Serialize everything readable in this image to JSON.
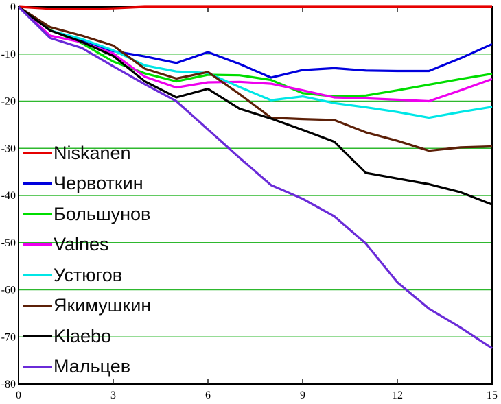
{
  "figure": {
    "background": "#ffffff"
  },
  "axes": {
    "box_color": "#000000",
    "grid_color": "#2eb82e",
    "tick_color": "#1a1a1a",
    "tick_label_color": "#000000",
    "x_tick_labels": [
      "0",
      "3",
      "6",
      "9",
      "12",
      "15"
    ],
    "x_tick_values": [
      0,
      3,
      6,
      9,
      12,
      15
    ],
    "x_inner_tick_values": [
      3,
      6,
      9,
      12
    ],
    "y_tick_labels": [
      "0",
      "-10",
      "-20",
      "-30",
      "-40",
      "-50",
      "-60",
      "-70",
      "-80"
    ],
    "y_tick_values": [
      0,
      -10,
      -20,
      -30,
      -40,
      -50,
      -60,
      -70,
      -80
    ],
    "y_grid_values": [
      -10,
      -20,
      -30,
      -40,
      -50,
      -60,
      -70
    ]
  },
  "chart_data": {
    "type": "line",
    "title": "",
    "xlabel": "",
    "ylabel": "",
    "xlim": [
      0,
      15
    ],
    "ylim": [
      -80,
      0
    ],
    "grid": "horizontal-green",
    "legend_position": "inside-left",
    "x": [
      0,
      1,
      2,
      3,
      4,
      5,
      6,
      7,
      8,
      9,
      10,
      11,
      12,
      13,
      14,
      15
    ],
    "series": [
      {
        "name": "Niskanen",
        "color": "#e60000",
        "values": [
          0,
          -0.4,
          -0.5,
          -0.3,
          0,
          0,
          0,
          0,
          0,
          0,
          0,
          0,
          0,
          0,
          0,
          0
        ]
      },
      {
        "name": "Червоткин",
        "color": "#0000dd",
        "values": [
          0,
          -5.0,
          -7.0,
          -9.4,
          -10.5,
          -11.9,
          -9.6,
          -12.1,
          -15.0,
          -13.4,
          -13.0,
          -13.5,
          -13.6,
          -13.6,
          -10.9,
          -7.9
        ]
      },
      {
        "name": "Большунов",
        "color": "#00dd00",
        "values": [
          0,
          -4.9,
          -7.7,
          -11.6,
          -14.1,
          -15.8,
          -14.4,
          -14.5,
          -15.5,
          -18.3,
          -19.0,
          -18.8,
          -17.7,
          -16.5,
          -15.3,
          -14.2
        ]
      },
      {
        "name": "Valnes",
        "color": "#ee00ee",
        "values": [
          0,
          -6.1,
          -7.5,
          -9.9,
          -14.8,
          -17.1,
          -16.0,
          -15.9,
          -16.3,
          -17.7,
          -19.2,
          -19.4,
          -19.7,
          -20.0,
          -17.7,
          -15.3
        ]
      },
      {
        "name": "Устюгов",
        "color": "#00e6e6",
        "values": [
          0,
          -5.0,
          -6.8,
          -9.2,
          -12.4,
          -13.7,
          -14.0,
          -17.0,
          -19.8,
          -19.0,
          -20.4,
          -21.3,
          -22.3,
          -23.5,
          -22.3,
          -21.2
        ]
      },
      {
        "name": "Якимушкин",
        "color": "#5c2008",
        "values": [
          0,
          -4.3,
          -6.1,
          -8.2,
          -13.1,
          -15.2,
          -13.8,
          -18.5,
          -23.5,
          -23.8,
          -24.0,
          -26.6,
          -28.4,
          -30.5,
          -29.8,
          -29.6
        ]
      },
      {
        "name": "Klaebo",
        "color": "#000000",
        "values": [
          0,
          -5.0,
          -7.4,
          -10.4,
          -15.8,
          -19.2,
          -17.4,
          -21.6,
          -23.7,
          -26.1,
          -28.6,
          -35.2,
          -36.4,
          -37.6,
          -39.3,
          -41.9
        ]
      },
      {
        "name": "Мальцев",
        "color": "#6a2bd8",
        "values": [
          0,
          -6.6,
          -8.7,
          -12.6,
          -16.4,
          -20.0,
          -26.0,
          -32.0,
          -37.8,
          -40.7,
          -44.4,
          -50.2,
          -58.4,
          -64.0,
          -68.0,
          -72.4
        ]
      }
    ]
  }
}
